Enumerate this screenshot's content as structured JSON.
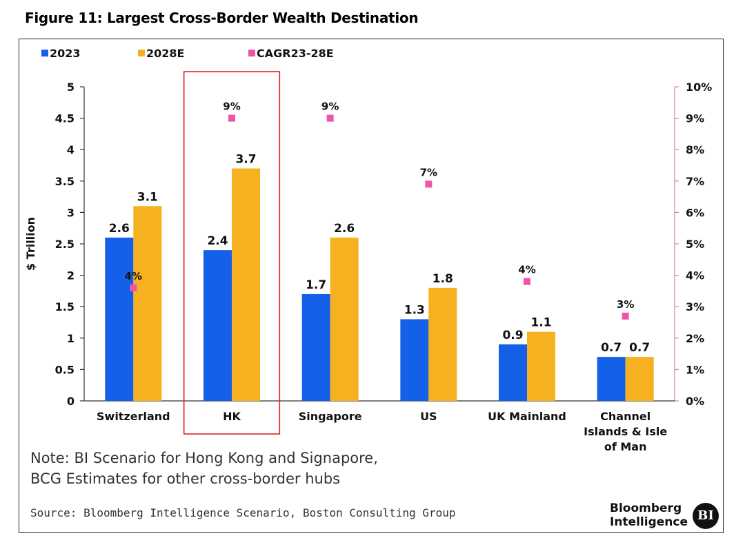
{
  "title": "Figure 11: Largest Cross-Border Wealth Destination",
  "note_lines": [
    "Note: BI Scenario for Hong Kong and Signapore,",
    "BCG Estimates for other cross-border hubs"
  ],
  "source": "Source: Bloomberg Intelligence Scenario, Boston Consulting Group",
  "brand_lines": [
    "Bloomberg",
    "Intelligence"
  ],
  "logo_text": "BI",
  "colors": {
    "series_2023": "#1560e8",
    "series_2028": "#f5b11f",
    "cagr": "#ee55aa",
    "highlight_box": "#e02020",
    "right_axis": "#e07aa8"
  },
  "chart_data": {
    "type": "bar",
    "title": "Figure 11: Largest Cross-Border Wealth Destination",
    "categories": [
      [
        "Switzerland"
      ],
      [
        "HK"
      ],
      [
        "Singapore"
      ],
      [
        "US"
      ],
      [
        "UK Mainland"
      ],
      [
        "Channel",
        "Islands & Isle",
        "of Man"
      ]
    ],
    "series": [
      {
        "name": "2023",
        "values": [
          2.6,
          2.4,
          1.7,
          1.3,
          0.9,
          0.7
        ],
        "labels": [
          "2.6",
          "2.4",
          "1.7",
          "1.3",
          "0.9",
          "0.7"
        ]
      },
      {
        "name": "2028E",
        "values": [
          3.1,
          3.7,
          2.6,
          1.8,
          1.1,
          0.7
        ],
        "labels": [
          "3.1",
          "3.7",
          "2.6",
          "1.8",
          "1.1",
          "0.7"
        ]
      }
    ],
    "secondary_series": {
      "name": "CAGR23-28E",
      "type": "scatter",
      "axis": "right",
      "values": [
        3.6,
        9.0,
        9.0,
        6.9,
        3.8,
        2.7
      ],
      "labels": [
        "4%",
        "9%",
        "9%",
        "7%",
        "4%",
        "3%"
      ]
    },
    "ylabel": "$ Trillion",
    "ylim": [
      0,
      5
    ],
    "y_ticks": [
      "0",
      "0.5",
      "1",
      "1.5",
      "2",
      "2.5",
      "3",
      "3.5",
      "4",
      "4.5",
      "5"
    ],
    "y2lim": [
      0,
      10
    ],
    "y2_ticks": [
      "0%",
      "1%",
      "2%",
      "3%",
      "4%",
      "5%",
      "6%",
      "7%",
      "8%",
      "9%",
      "10%"
    ],
    "legend_position": "top-left",
    "highlighted_category": "HK",
    "grid": false
  }
}
